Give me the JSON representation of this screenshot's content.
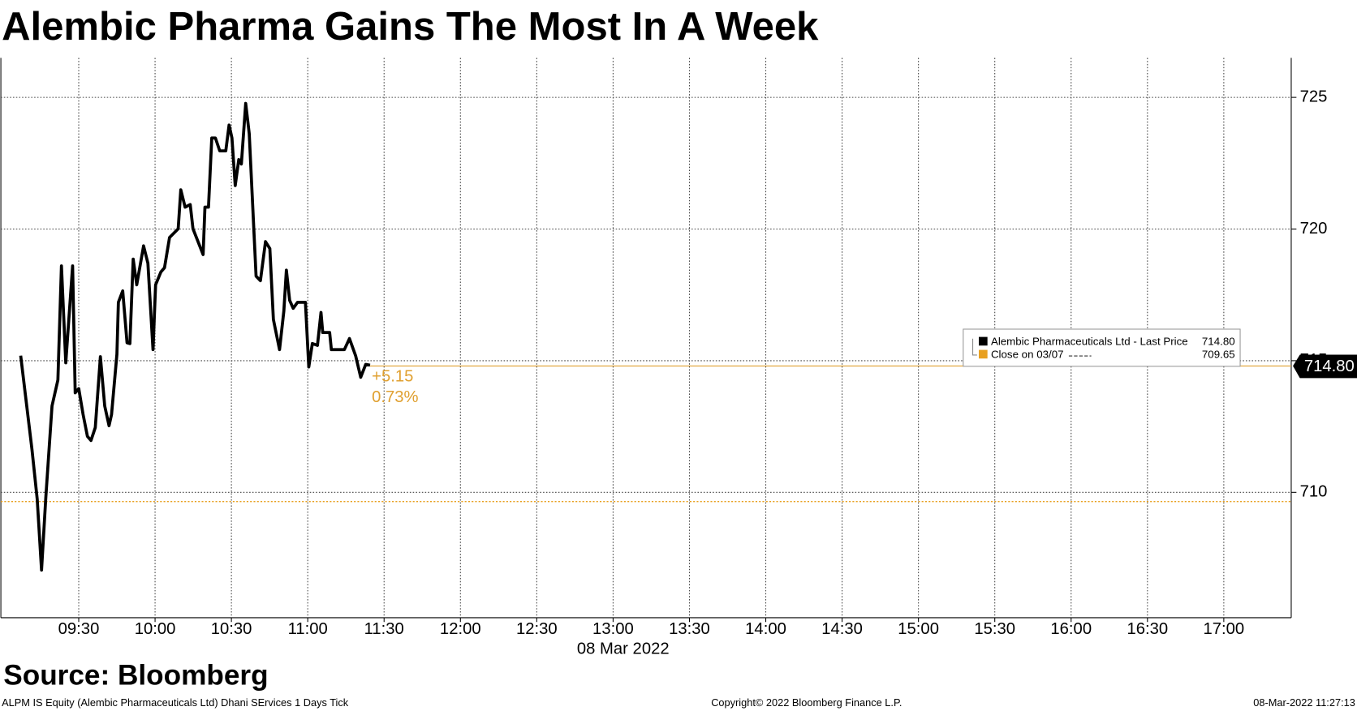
{
  "chart_data": {
    "type": "line",
    "title": "Alembic Pharma Gains The Most In A Week",
    "source": "Source: Bloomberg",
    "footer_left": "ALPM IS Equity (Alembic Pharmaceuticals Ltd) Dhani SErvices 1 Days  Tick",
    "footer_center": "Copyright© 2022 Bloomberg Finance L.P.",
    "footer_right": "08-Mar-2022 11:27:13",
    "x_axis_label": "08 Mar 2022",
    "x": [
      547.2,
      551.6,
      553.7,
      555.4,
      557.1,
      559.5,
      561.8,
      563.2,
      564.9,
      567.6,
      568.6,
      570,
      571.7,
      573.4,
      574.8,
      576.5,
      578.5,
      580.2,
      581.9,
      582.9,
      585.0,
      585.6,
      587.3,
      589.0,
      590.1,
      591.4,
      592.8,
      595.5,
      597.2,
      599.2,
      600.2,
      602.3,
      603.7,
      605.7,
      609.1,
      610.1,
      611.8,
      613.8,
      614.9,
      618.9,
      619.6,
      621.0,
      622.3,
      623.7,
      625.4,
      627.8,
      629.1,
      630.2,
      631.5,
      632.9,
      633.9,
      635.6,
      637.0,
      639.7,
      641.4,
      643.4,
      645.1,
      646.5,
      648.9,
      650.6,
      651.6,
      652.9,
      654.3,
      656.0,
      659.1,
      660.4,
      661.8,
      663.8,
      665.2,
      665.9,
      668.6,
      669.3,
      674.4,
      676.4,
      678.8,
      680.8,
      682.8,
      684.5
    ],
    "series": [
      {
        "name": "Alembic Pharmaceuticals Ltd - Last Price",
        "color": "#000000",
        "values": [
          715.19,
          711.64,
          709.74,
          707.05,
          709.84,
          713.28,
          714.27,
          718.6,
          714.92,
          718.6,
          713.78,
          713.94,
          712.96,
          712.13,
          711.97,
          712.46,
          715.15,
          713.28,
          712.53,
          712.96,
          715.25,
          717.22,
          717.65,
          715.68,
          715.65,
          718.86,
          717.88,
          719.36,
          718.7,
          715.42,
          717.88,
          718.37,
          718.53,
          719.68,
          720.01,
          721.49,
          720.83,
          720.93,
          720.01,
          719.03,
          720.83,
          720.83,
          723.46,
          723.46,
          722.97,
          722.97,
          723.95,
          723.46,
          721.65,
          722.64,
          722.47,
          724.77,
          723.62,
          718.21,
          718.04,
          719.52,
          719.26,
          716.57,
          715.42,
          716.89,
          718.44,
          717.29,
          716.99,
          717.22,
          717.22,
          714.76,
          715.65,
          715.58,
          716.83,
          716.07,
          716.07,
          715.42,
          715.42,
          715.84,
          715.19,
          714.37,
          714.86,
          714.83
        ],
        "last_value": {
          "value": 714.8,
          "label": "714.80"
        }
      }
    ],
    "reference_line": {
      "name": "Close on 03/07",
      "value": 709.65,
      "label": "709.65",
      "color": "#e8a020"
    },
    "change": {
      "value": 5.15,
      "label": "+5.15"
    },
    "change_pct": {
      "value": 0.73,
      "label": "0.73%"
    },
    "annotation_color": "#e0a030",
    "xlim": [
      539.4,
      1046.5
    ],
    "ylim": [
      705.24,
      726.5
    ],
    "xticks": [
      {
        "value": 570,
        "label": "09:30"
      },
      {
        "value": 600,
        "label": "10:00"
      },
      {
        "value": 630,
        "label": "10:30"
      },
      {
        "value": 660,
        "label": "11:00"
      },
      {
        "value": 690,
        "label": "11:30"
      },
      {
        "value": 720,
        "label": "12:00"
      },
      {
        "value": 750,
        "label": "12:30"
      },
      {
        "value": 780,
        "label": "13:00"
      },
      {
        "value": 810,
        "label": "13:30"
      },
      {
        "value": 840,
        "label": "14:00"
      },
      {
        "value": 870,
        "label": "14:30"
      },
      {
        "value": 900,
        "label": "15:00"
      },
      {
        "value": 930,
        "label": "15:30"
      },
      {
        "value": 960,
        "label": "16:00"
      },
      {
        "value": 990,
        "label": "16:30"
      },
      {
        "value": 1020,
        "label": "17:00"
      }
    ],
    "yticks": [
      710,
      715,
      720,
      725
    ],
    "grid": true
  }
}
